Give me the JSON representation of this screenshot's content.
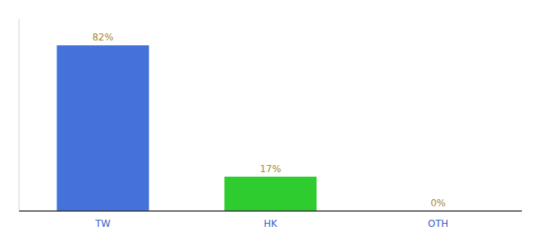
{
  "chart_data": {
    "type": "bar",
    "categories": [
      "TW",
      "HK",
      "OTH"
    ],
    "values": [
      82,
      17,
      0
    ],
    "value_labels": [
      "82%",
      "17%",
      "0%"
    ],
    "colors": [
      "#4472db",
      "#2ecc2e",
      "#4472db"
    ],
    "ylim": [
      0,
      95
    ],
    "data_labels": true,
    "tick_labels": "x",
    "grid": false
  }
}
